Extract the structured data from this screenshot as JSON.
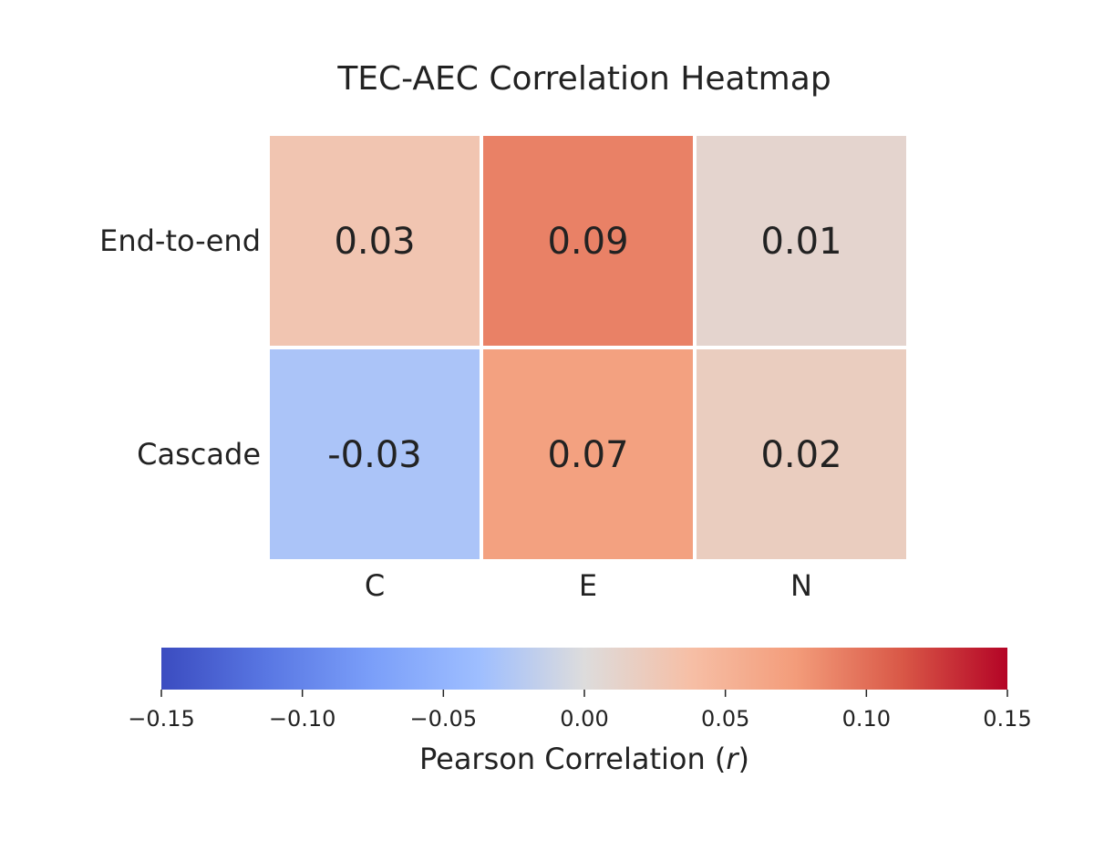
{
  "chart_data": {
    "type": "heatmap",
    "title": "TEC-AEC Correlation Heatmap",
    "rows": [
      "End-to-end",
      "Cascade"
    ],
    "columns": [
      "C",
      "E",
      "N"
    ],
    "values": [
      [
        0.03,
        0.09,
        0.01
      ],
      [
        -0.03,
        0.07,
        0.02
      ]
    ],
    "cell_labels": [
      [
        "0.03",
        "0.09",
        "0.01"
      ],
      [
        "-0.03",
        "0.07",
        "0.02"
      ]
    ],
    "colorbar": {
      "colormap": "coolwarm",
      "vmin": -0.15,
      "vmax": 0.15,
      "ticks": [
        -0.15,
        -0.1,
        -0.05,
        0.0,
        0.05,
        0.1,
        0.15
      ],
      "tick_labels": [
        "−0.15",
        "−0.10",
        "−0.05",
        "0.00",
        "0.05",
        "0.10",
        "0.15"
      ],
      "label_prefix": "Pearson Correlation (",
      "label_symbol": "r",
      "label_suffix": ")",
      "orientation": "horizontal",
      "placement": "bottom"
    }
  }
}
